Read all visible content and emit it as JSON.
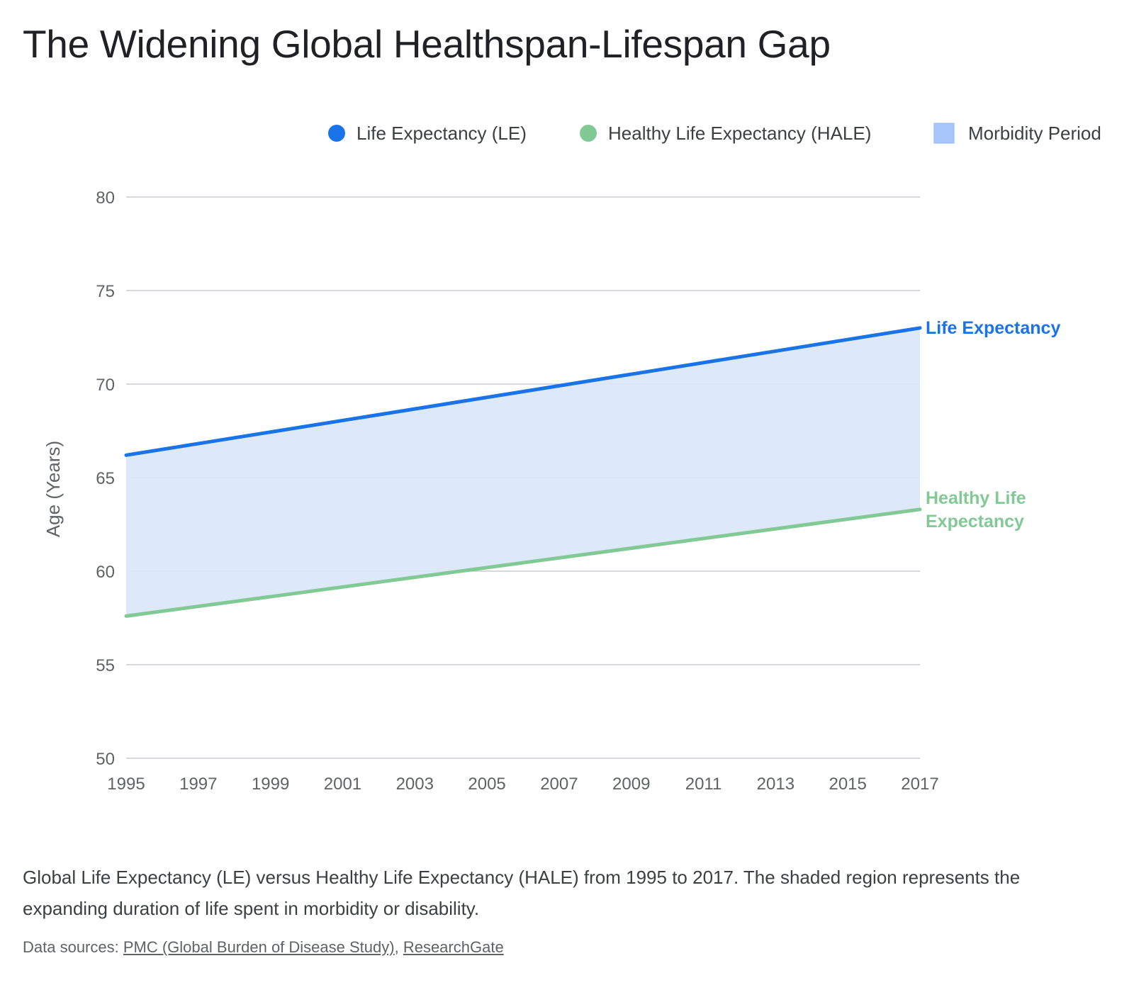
{
  "title": "The Widening Global Healthspan-Lifespan Gap",
  "caption": "Global Life Expectancy (LE) versus Healthy Life Expectancy (HALE) from 1995 to 2017. The shaded region represents the expanding duration of life spent in morbidity or disability.",
  "sources": {
    "label": "Data sources:",
    "links": [
      "PMC (Global Burden of Disease Study)",
      "ResearchGate"
    ]
  },
  "colors": {
    "le": "#1a73e8",
    "hale": "#81c995",
    "morbidity_fill": "#dbe7f9",
    "morbidity_legend": "#a8c7fa",
    "grid": "#bdc1c6",
    "tick_text": "#5f6368"
  },
  "chart_data": {
    "type": "area",
    "title": "",
    "xlabel": "",
    "ylabel": "Age (Years)",
    "ylim": [
      50,
      80
    ],
    "yticks": [
      50,
      55,
      60,
      65,
      70,
      75,
      80
    ],
    "xlim": [
      1995,
      2017
    ],
    "xticks": [
      1995,
      1997,
      1999,
      2001,
      2003,
      2005,
      2007,
      2009,
      2011,
      2013,
      2015,
      2017
    ],
    "grid": true,
    "legend": "top-right",
    "legend_entries": [
      "Life Expectancy (LE)",
      "Healthy Life Expectancy (HALE)",
      "Morbidity Period"
    ],
    "series": [
      {
        "name": "Life Expectancy (LE)",
        "end_label": "Life Expectancy",
        "x": [
          1995,
          2017
        ],
        "values": [
          66.2,
          73.0
        ]
      },
      {
        "name": "Healthy Life Expectancy (HALE)",
        "end_label": "Healthy Life Expectancy",
        "x": [
          1995,
          2017
        ],
        "values": [
          57.6,
          63.3
        ]
      }
    ],
    "area": {
      "name": "Morbidity Period",
      "between": [
        "Life Expectancy (LE)",
        "Healthy Life Expectancy (HALE)"
      ]
    }
  }
}
